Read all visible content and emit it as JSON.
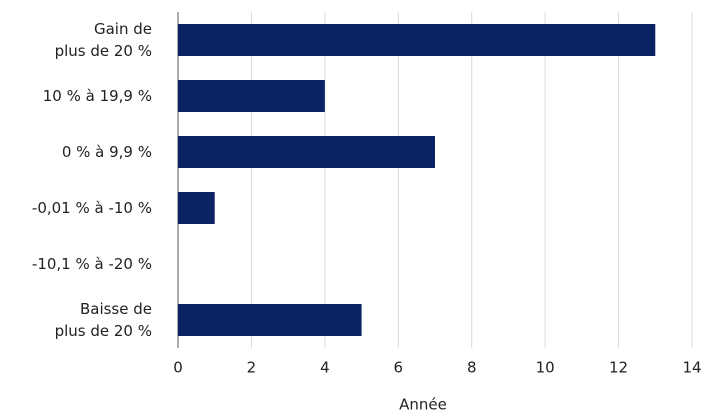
{
  "chart_data": {
    "type": "hbar",
    "x_label": "Année",
    "categories": [
      "Gain de\nplus de 20 %",
      "10 % à 19,9 %",
      "0 % à 9,9 %",
      "-0,01 % à -10 %",
      "-10,1 % à -20 %",
      "Baisse de\nplus de 20 %"
    ],
    "values": [
      13,
      4,
      7,
      1,
      0,
      5
    ],
    "color": "#0b2265",
    "xlim": [
      0,
      14
    ],
    "xticks": [
      0,
      2,
      4,
      6,
      8,
      10,
      12,
      14
    ],
    "grid": true
  }
}
